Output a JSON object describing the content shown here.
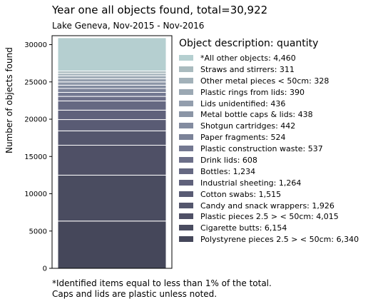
{
  "title": "Year one all objects found,  total=30,922",
  "subtitle": "Lake Geneva, Nov-2015 - Nov-2016",
  "legend_title": "Object description: quantity",
  "footnote_lines": [
    "*Identified items equal to less than 1% of the total.",
    "Caps and lids are plastic unless noted."
  ],
  "chart_data": {
    "type": "bar",
    "stacked": true,
    "title": "Year one all objects found,  total=30,922",
    "subtitle": "Lake Geneva, Nov-2015 - Nov-2016",
    "ylabel": "Number of objects found",
    "ylim": [
      0,
      31200
    ],
    "yticks": [
      0,
      5000,
      10000,
      15000,
      20000,
      25000,
      30000
    ],
    "ytick_labels": [
      "0",
      "5000",
      "10000",
      "15000",
      "20000",
      "25000",
      "30000"
    ],
    "legend_position": "right",
    "series": [
      {
        "name": "Polystyrene pieces 2.5 > < 50cm",
        "value": 6340,
        "label": "Polystyrene pieces 2.5 > < 50cm: 6,340",
        "color": "#45475a"
      },
      {
        "name": "Cigarette butts",
        "value": 6154,
        "label": "Cigarette butts: 6,154",
        "color": "#4a4c60"
      },
      {
        "name": "Plastic pieces 2.5 > < 50cm",
        "value": 4015,
        "label": "Plastic pieces 2.5 > < 50cm: 4,015",
        "color": "#4f5066"
      },
      {
        "name": "Candy and snack wrappers",
        "value": 1926,
        "label": "Candy and snack wrappers: 1,926",
        "color": "#54566d"
      },
      {
        "name": "Cotton swabs",
        "value": 1515,
        "label": "Cotton swabs: 1,515",
        "color": "#595b74"
      },
      {
        "name": "Industrial sheeting",
        "value": 1264,
        "label": "Industrial sheeting: 1,264",
        "color": "#5f617b"
      },
      {
        "name": "Bottles",
        "value": 1234,
        "label": "Bottles: 1,234",
        "color": "#656882"
      },
      {
        "name": "Drink lids",
        "value": 608,
        "label": "Drink lids: 608",
        "color": "#6c6f89"
      },
      {
        "name": "Plastic construction waste",
        "value": 537,
        "label": "Plastic construction waste: 537",
        "color": "#737891"
      },
      {
        "name": "Paper fragments",
        "value": 524,
        "label": "Paper fragments: 524",
        "color": "#7b8298"
      },
      {
        "name": "Shotgun cartridges",
        "value": 442,
        "label": "Shotgun cartridges: 442",
        "color": "#838ca0"
      },
      {
        "name": "Metal bottle caps & lids",
        "value": 438,
        "label": "Metal bottle caps & lids: 438",
        "color": "#8b95a6"
      },
      {
        "name": "Lids unidentified",
        "value": 436,
        "label": "Lids unidentified: 436",
        "color": "#939ead"
      },
      {
        "name": "Plastic rings from lids",
        "value": 390,
        "label": "Plastic rings from lids: 390",
        "color": "#9ba8b3"
      },
      {
        "name": "Other metal pieces < 50cm",
        "value": 328,
        "label": "Other metal pieces < 50cm: 328",
        "color": "#a2b1b9"
      },
      {
        "name": "Straws and stirrers",
        "value": 311,
        "label": "Straws and stirrers: 311",
        "color": "#aabbbf"
      },
      {
        "name": "*All other objects",
        "value": 4460,
        "label": "*All other objects: 4,460",
        "color": "#b5cfd0"
      }
    ]
  }
}
